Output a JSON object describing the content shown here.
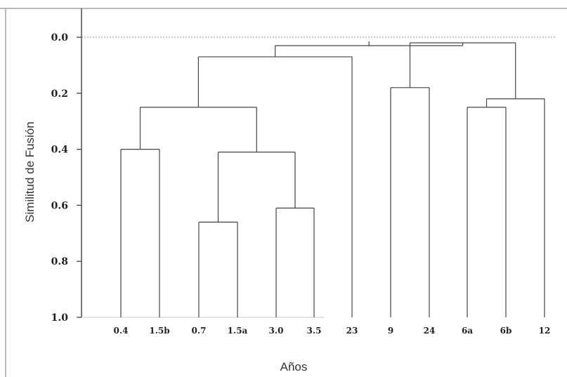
{
  "chart_data": {
    "type": "dendrogram",
    "xlabel": "Años",
    "ylabel": "Similitud de Fusión",
    "yticks": [
      "0.0",
      "0.2",
      "0.4",
      "0.6",
      "0.8",
      "1.0"
    ],
    "ylim": [
      0.0,
      1.0
    ],
    "y_inverted": true,
    "leaves": [
      "0.4",
      "1.5b",
      "0.7",
      "1.5a",
      "3.0",
      "3.5",
      "23",
      "9",
      "24",
      "6a",
      "6b",
      "12"
    ],
    "merges": [
      {
        "left": "0.4",
        "right": "1.5b",
        "height": 0.4
      },
      {
        "left": "0.7",
        "right": "1.5a",
        "height": 0.66
      },
      {
        "left": "3.0",
        "right": "3.5",
        "height": 0.61
      },
      {
        "left": "(0.7,1.5a)",
        "right": "(3.0,3.5)",
        "height": 0.41
      },
      {
        "left": "(0.4,1.5b)",
        "right": "((0.7,1.5a),(3.0,3.5))",
        "height": 0.25
      },
      {
        "left": "(0.4 ... 3.5)",
        "right": "23",
        "height": 0.07
      },
      {
        "left": "9",
        "right": "24",
        "height": 0.18
      },
      {
        "left": "6a",
        "right": "6b",
        "height": 0.25
      },
      {
        "left": "(6a,6b)",
        "right": "12",
        "height": 0.22
      },
      {
        "left": "(9,24)",
        "right": "(6a,6b,12)",
        "height": 0.02
      },
      {
        "left": "(0.4 ... 23)",
        "right": "(9 ... 12)",
        "height": 0.03
      }
    ],
    "reference_line": 0.0
  }
}
